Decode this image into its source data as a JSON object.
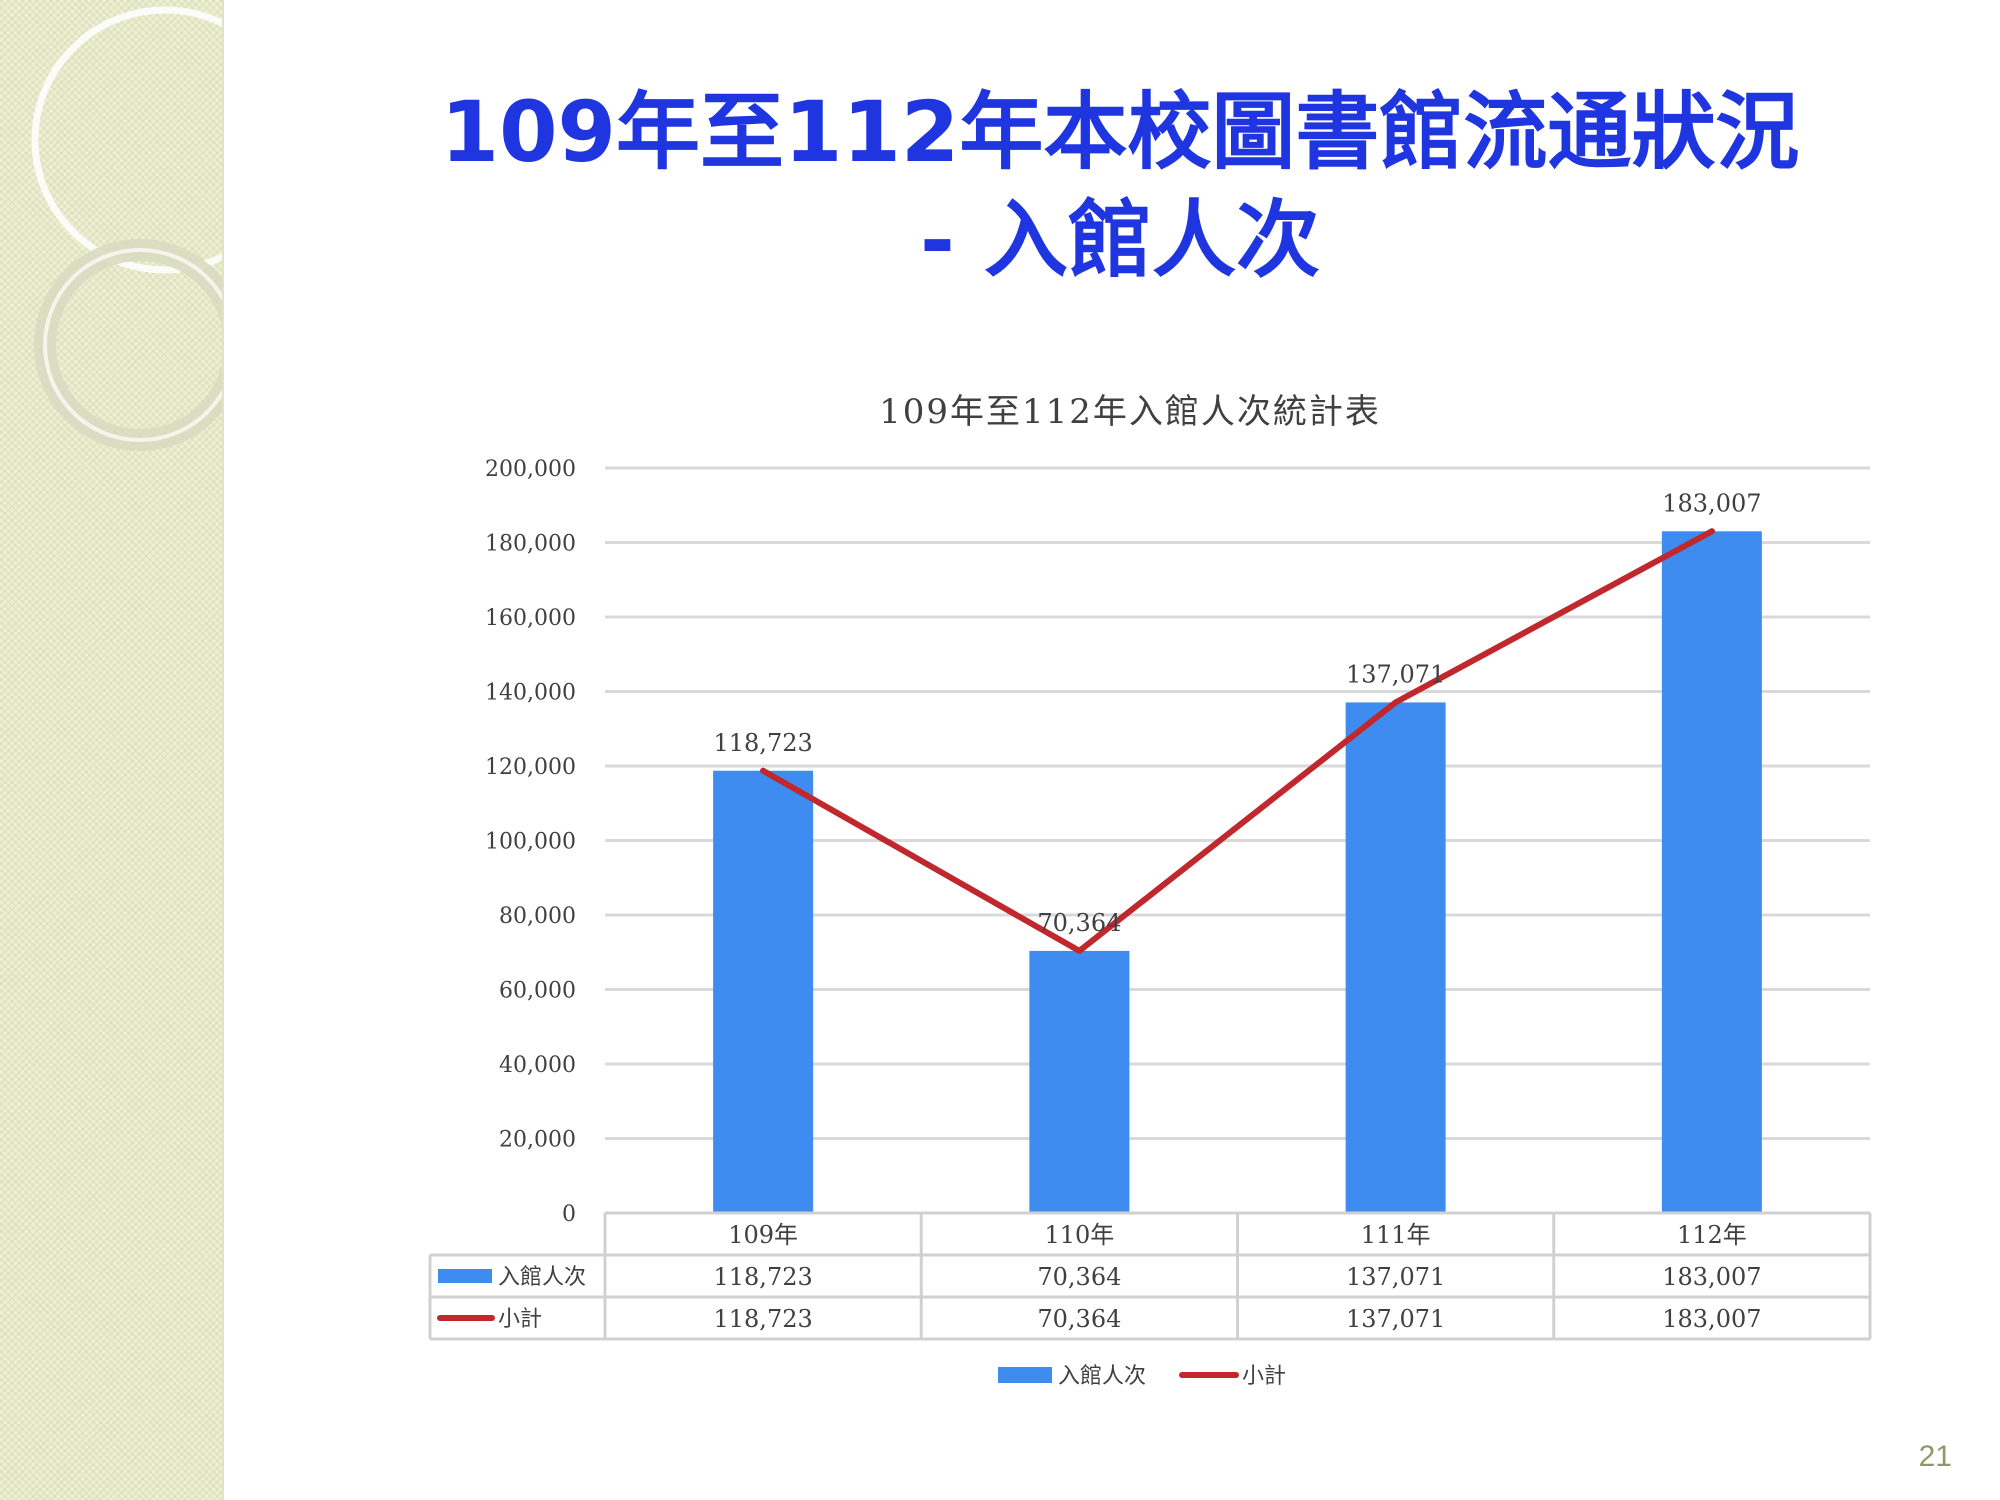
{
  "slide": {
    "title_line1": "109年至112年本校圖書館流通狀況",
    "title_line2": "- 入館人次",
    "page_number": "21"
  },
  "chart_data": {
    "type": "bar",
    "title": "109年至112年入館人次統計表",
    "categories": [
      "109年",
      "110年",
      "111年",
      "112年"
    ],
    "series": [
      {
        "name": "入館人次",
        "type": "bar",
        "values": [
          118723,
          70364,
          137071,
          183007
        ],
        "color": "#3f8cf0"
      },
      {
        "name": "小計",
        "type": "line",
        "values": [
          118723,
          70364,
          137071,
          183007
        ],
        "color": "#c0282e"
      }
    ],
    "data_labels": [
      "118,723",
      "70,364",
      "137,071",
      "183,007"
    ],
    "yticks": [
      "0",
      "20,000",
      "40,000",
      "60,000",
      "80,000",
      "100,000",
      "120,000",
      "140,000",
      "160,000",
      "180,000",
      "200,000"
    ],
    "ylim": [
      0,
      200000
    ],
    "grid": true,
    "legend_position": "bottom",
    "data_table": {
      "rows": [
        {
          "label": "入館人次",
          "values": [
            "118,723",
            "70,364",
            "137,071",
            "183,007"
          ]
        },
        {
          "label": "小計",
          "values": [
            "118,723",
            "70,364",
            "137,071",
            "183,007"
          ]
        }
      ]
    }
  }
}
